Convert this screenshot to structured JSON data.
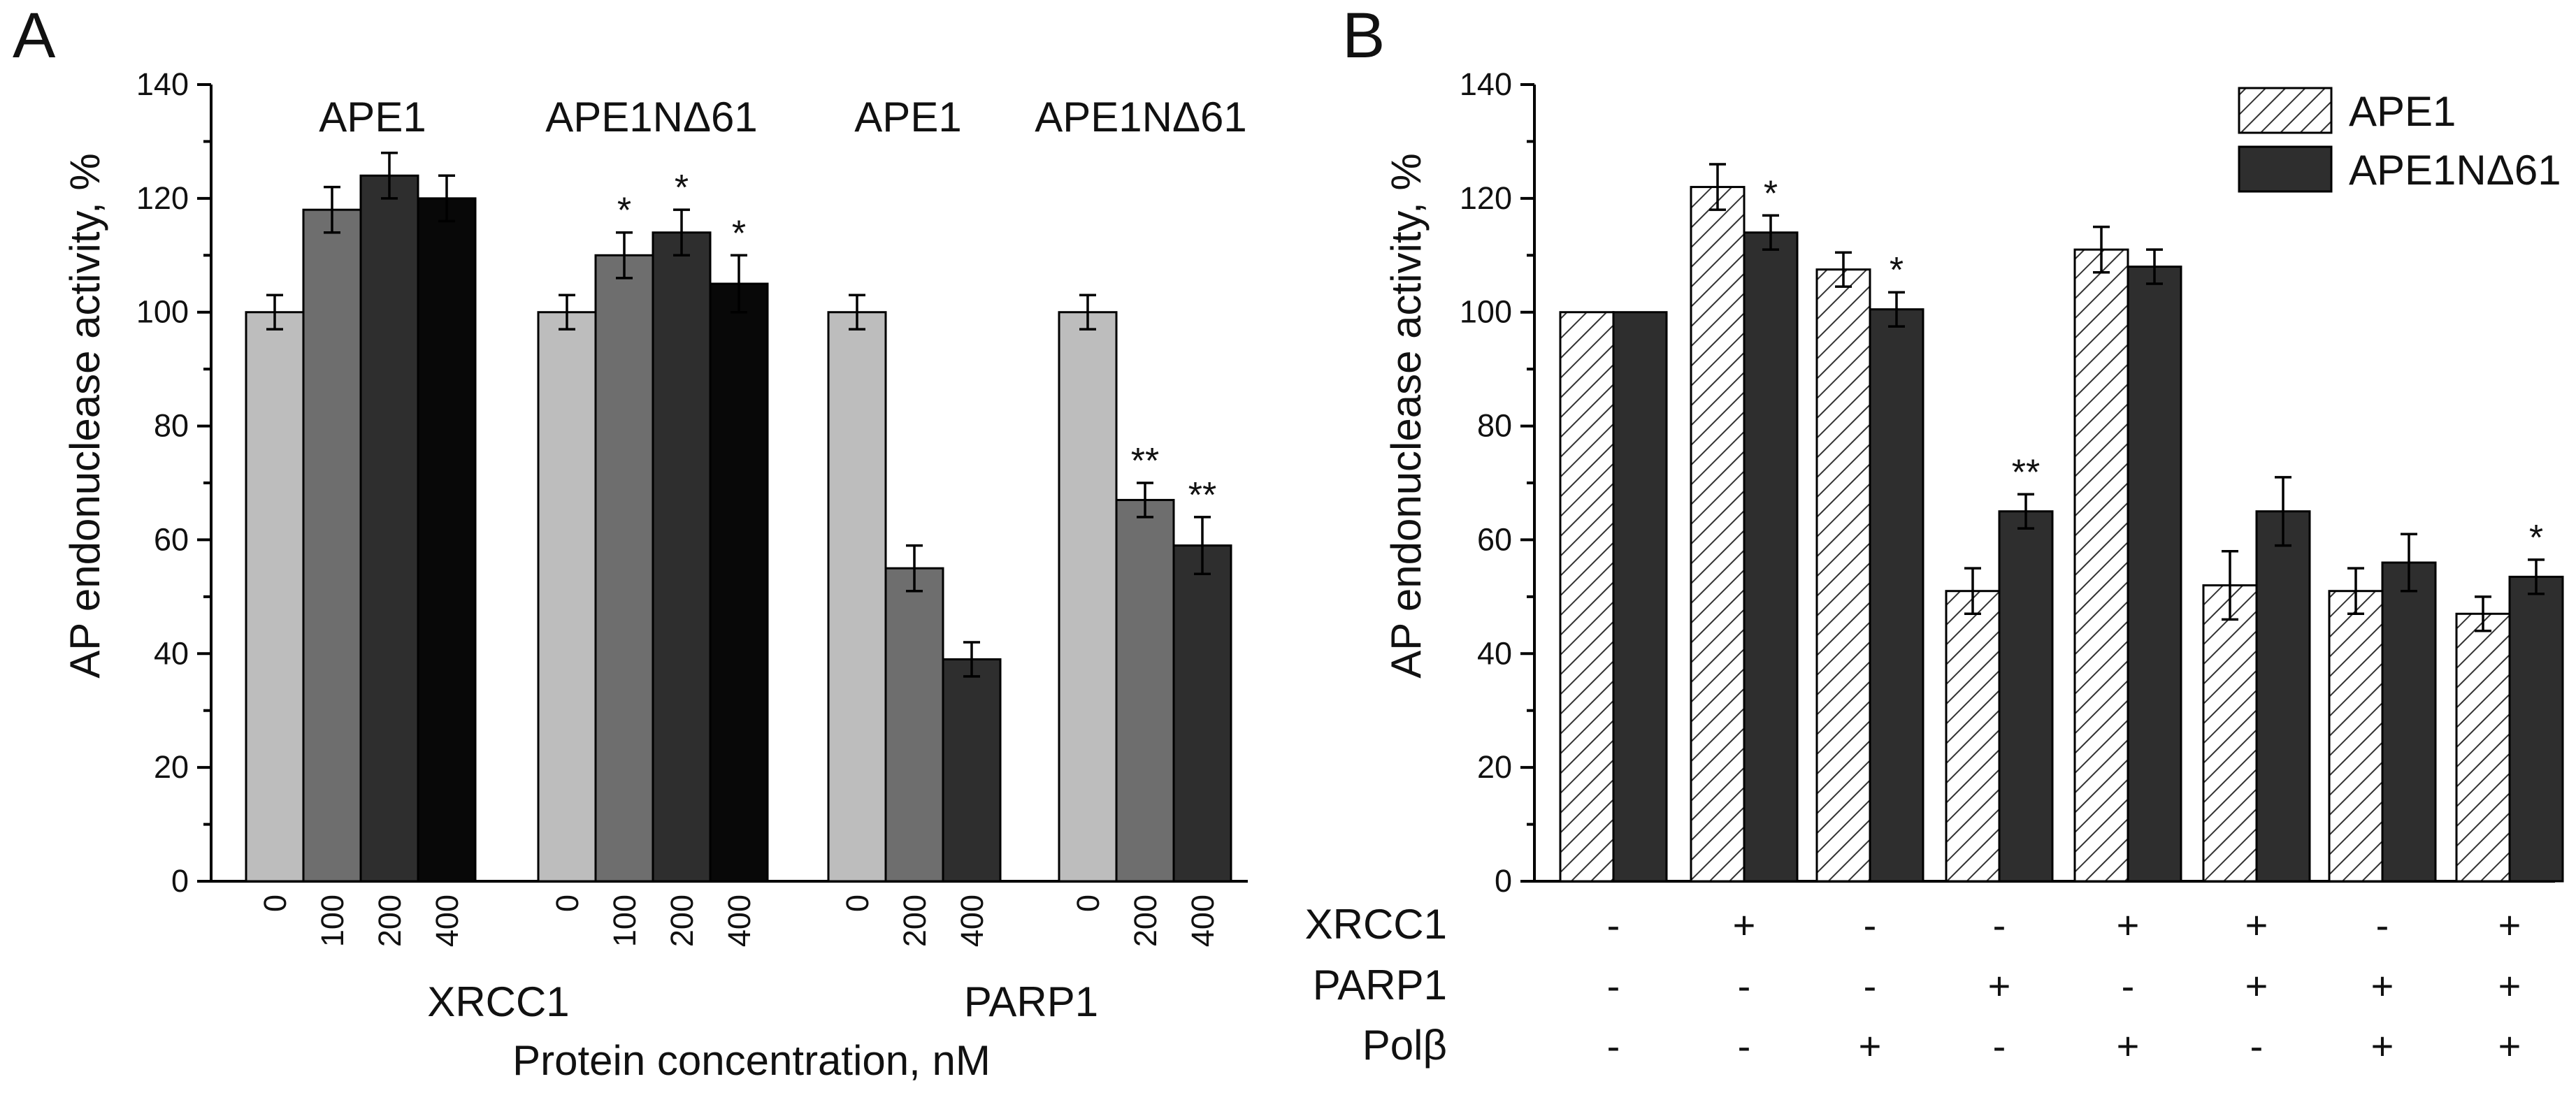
{
  "panels": {
    "A": {
      "letter": "A",
      "ylabel": "AP endonuclease activity, %",
      "xlabel": "Protein concentration, nM",
      "ylim": [
        0,
        140
      ],
      "yticks": [
        0,
        20,
        40,
        60,
        80,
        100,
        120,
        140
      ],
      "group_titles": [
        "APE1",
        "APE1NΔ61",
        "APE1",
        "APE1NΔ61"
      ],
      "protein_labels": [
        "XRCC1",
        "PARP1"
      ]
    },
    "B": {
      "letter": "B",
      "ylabel": "AP endonuclease activity, %",
      "ylim": [
        0,
        140
      ],
      "yticks": [
        0,
        20,
        40,
        60,
        80,
        100,
        120,
        140
      ],
      "legend": [
        "APE1",
        "APE1NΔ61"
      ],
      "condition_rows": [
        {
          "label": "XRCC1",
          "values": [
            "-",
            "+",
            "-",
            "-",
            "+",
            "+",
            "-",
            "+"
          ]
        },
        {
          "label": "PARP1",
          "values": [
            "-",
            "-",
            "-",
            "+",
            "-",
            "+",
            "+",
            "+"
          ]
        },
        {
          "label": "Polβ",
          "values": [
            "-",
            "-",
            "+",
            "-",
            "+",
            "-",
            "+",
            "+"
          ]
        }
      ]
    }
  },
  "colors": {
    "light_gray": "#bdbdbd",
    "mid_gray": "#6e6e6e",
    "dark_gray": "#2e2e2e",
    "black": "#080808",
    "hatch_line": "#333333"
  },
  "chart_data": [
    {
      "panel": "A",
      "type": "bar",
      "ylim": [
        0,
        140
      ],
      "groups": [
        {
          "title": "APE1",
          "protein": "XRCC1",
          "bars": [
            {
              "conc": "0",
              "value": 100,
              "err": 3,
              "sig": "",
              "color": "light_gray"
            },
            {
              "conc": "100",
              "value": 118,
              "err": 4,
              "sig": "",
              "color": "mid_gray"
            },
            {
              "conc": "200",
              "value": 124,
              "err": 4,
              "sig": "",
              "color": "dark_gray"
            },
            {
              "conc": "400",
              "value": 120,
              "err": 4,
              "sig": "",
              "color": "black"
            }
          ]
        },
        {
          "title": "APE1NΔ61",
          "protein": "XRCC1",
          "bars": [
            {
              "conc": "0",
              "value": 100,
              "err": 3,
              "sig": "",
              "color": "light_gray"
            },
            {
              "conc": "100",
              "value": 110,
              "err": 4,
              "sig": "*",
              "color": "mid_gray"
            },
            {
              "conc": "200",
              "value": 114,
              "err": 4,
              "sig": "*",
              "color": "dark_gray"
            },
            {
              "conc": "400",
              "value": 105,
              "err": 5,
              "sig": "*",
              "color": "black"
            }
          ]
        },
        {
          "title": "APE1",
          "protein": "PARP1",
          "bars": [
            {
              "conc": "0",
              "value": 100,
              "err": 3,
              "sig": "",
              "color": "light_gray"
            },
            {
              "conc": "200",
              "value": 55,
              "err": 4,
              "sig": "",
              "color": "mid_gray"
            },
            {
              "conc": "400",
              "value": 39,
              "err": 3,
              "sig": "",
              "color": "dark_gray"
            }
          ]
        },
        {
          "title": "APE1NΔ61",
          "protein": "PARP1",
          "bars": [
            {
              "conc": "0",
              "value": 100,
              "err": 3,
              "sig": "",
              "color": "light_gray"
            },
            {
              "conc": "200",
              "value": 67,
              "err": 3,
              "sig": "**",
              "color": "mid_gray"
            },
            {
              "conc": "400",
              "value": 59,
              "err": 5,
              "sig": "**",
              "color": "dark_gray"
            }
          ]
        }
      ]
    },
    {
      "panel": "B",
      "type": "bar",
      "ylim": [
        0,
        140
      ],
      "series": [
        {
          "name": "APE1",
          "style": "hatched",
          "values": [
            100,
            122,
            107.5,
            51,
            111,
            52,
            51,
            47
          ],
          "errors": [
            0,
            4,
            3,
            4,
            4,
            6,
            4,
            3
          ],
          "sig": [
            "",
            "",
            "",
            "",
            "",
            "",
            "",
            ""
          ]
        },
        {
          "name": "APE1NΔ61",
          "style": "dark",
          "values": [
            100,
            114,
            100.5,
            65,
            108,
            65,
            56,
            53.5
          ],
          "errors": [
            0,
            3,
            3,
            3,
            3,
            6,
            5,
            3
          ],
          "sig": [
            "",
            "*",
            "*",
            "**",
            "",
            "",
            "",
            "*"
          ]
        }
      ]
    }
  ]
}
